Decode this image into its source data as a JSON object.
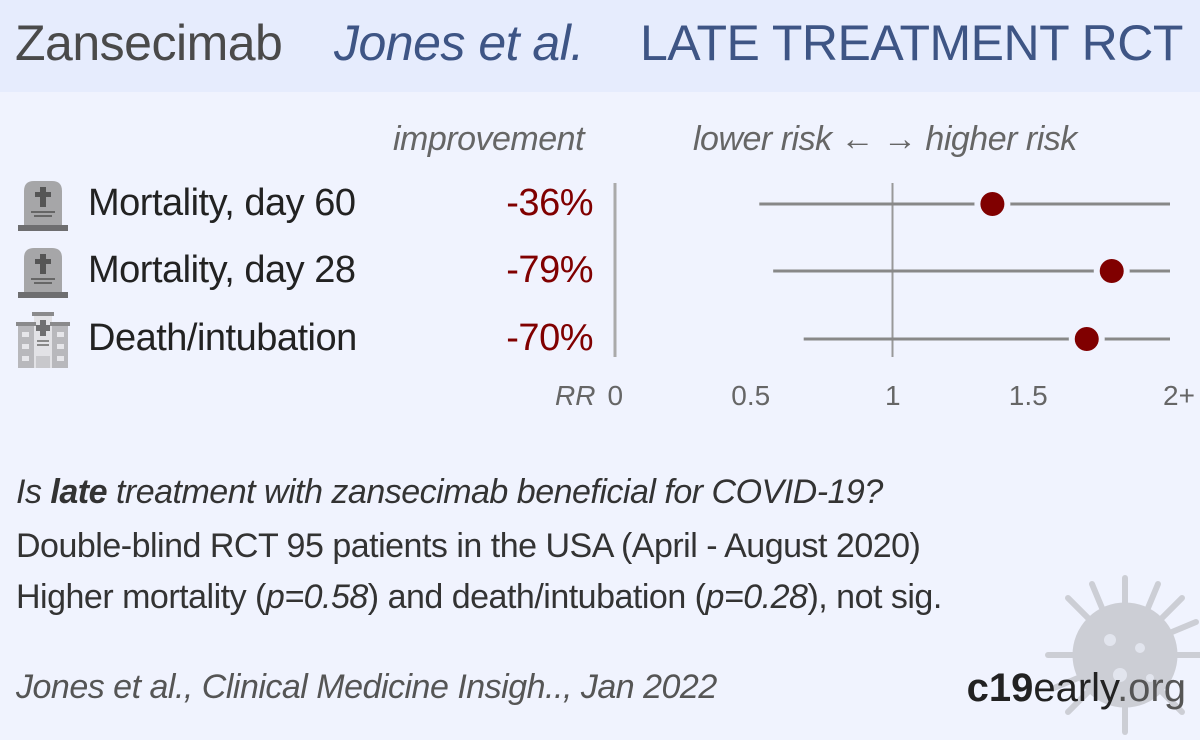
{
  "header": {
    "drug": "Zansecimab",
    "author": "Jones et al.",
    "study_type": "LATE TREATMENT RCT"
  },
  "columns": {
    "improvement": "improvement",
    "risk_direction": "lower risk ← → higher risk"
  },
  "outcomes": [
    {
      "icon": "tombstone-icon",
      "label": "Mortality, day 60",
      "improvement": "-36%"
    },
    {
      "icon": "tombstone-icon",
      "label": "Mortality, day 28",
      "improvement": "-79%"
    },
    {
      "icon": "hospital-icon",
      "label": "Death/intubation",
      "improvement": "-70%"
    }
  ],
  "colors": {
    "point": "#800000",
    "ci_line": "#888888",
    "header_bg": "#e6ecfd",
    "accent": "#3e5585"
  },
  "chart_data": {
    "type": "forest",
    "x_label": "RR",
    "xlim": [
      0,
      2
    ],
    "x_ticks": [
      {
        "value": 0,
        "label": "0"
      },
      {
        "value": 0.5,
        "label": "0.5"
      },
      {
        "value": 1,
        "label": "1"
      },
      {
        "value": 1.5,
        "label": "1.5"
      },
      {
        "value": 2,
        "label": "2+"
      }
    ],
    "reference_line": 1,
    "series": [
      {
        "name": "Mortality, day 60",
        "rr": 1.36,
        "ci_low": 0.52,
        "ci_high": 2.0,
        "ci_high_clipped": true
      },
      {
        "name": "Mortality, day 28",
        "rr": 1.79,
        "ci_low": 0.57,
        "ci_high": 2.0,
        "ci_high_clipped": true
      },
      {
        "name": "Death/intubation",
        "rr": 1.7,
        "ci_low": 0.68,
        "ci_high": 2.0,
        "ci_high_clipped": true
      }
    ]
  },
  "summary": {
    "question_pre": "Is ",
    "question_bold": "late",
    "question_post": " treatment with zansecimab beneficial for COVID-19?",
    "line2": "Double-blind RCT 95 patients in the USA (April - August 2020)",
    "line3_a": "Higher mortality (",
    "line3_p1": "p=0.58",
    "line3_b": ") and death/intubation (",
    "line3_p2": "p=0.28",
    "line3_c": "), not sig."
  },
  "footer": {
    "citation": "Jones et al., Clinical Medicine Insigh.., Jan 2022",
    "brand_bold": "c19",
    "brand_mid": "early",
    "brand_end": ".org"
  }
}
